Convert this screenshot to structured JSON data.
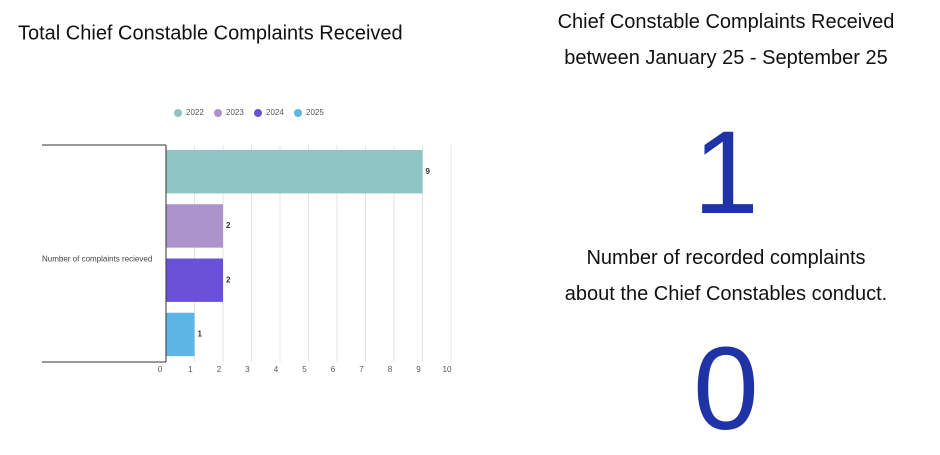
{
  "chart_data": {
    "type": "bar",
    "orientation": "horizontal",
    "title": "Total Chief Constable Complaints Received",
    "categories": [
      "Number of complaints recieved"
    ],
    "series": [
      {
        "name": "2022",
        "color": "#8ec4c3",
        "values": [
          9
        ]
      },
      {
        "name": "2023",
        "color": "#ad93cb",
        "values": [
          2
        ]
      },
      {
        "name": "2024",
        "color": "#6a52d8",
        "values": [
          2
        ]
      },
      {
        "name": "2025",
        "color": "#5db5e5",
        "values": [
          1
        ]
      }
    ],
    "xlim": [
      0,
      10
    ],
    "xticks": [
      0,
      1,
      2,
      3,
      4,
      5,
      6,
      7,
      8,
      9,
      10
    ],
    "grid": true,
    "legend": "top",
    "data_labels": true
  },
  "stat_panel": {
    "title": [
      "Chief Constable Complaints Received",
      "between January 25 - September 25"
    ],
    "value": 1,
    "caption": [
      "Number of recorded complaints",
      "about the Chief Constables conduct."
    ],
    "second_value": 0
  }
}
